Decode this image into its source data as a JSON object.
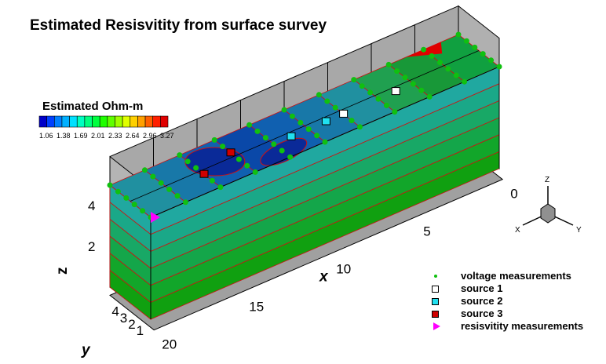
{
  "chart_data": {
    "type": "heatmap",
    "title": "Estimated Resisvitity from surface survey",
    "colorbar": {
      "title": "Estimated Ohm-m",
      "tick_labels": [
        "1.06",
        "1.38",
        "1.69",
        "2.01",
        "2.33",
        "2.64",
        "2.96",
        "3.27"
      ],
      "range": [
        1.06,
        3.27
      ],
      "colors": [
        "#0000c8",
        "#0040ff",
        "#0080ff",
        "#00b0ff",
        "#00e0ff",
        "#00ffc0",
        "#00ff80",
        "#00ff40",
        "#20ff00",
        "#60ff00",
        "#a0ff00",
        "#e0ff00",
        "#ffd000",
        "#ffa000",
        "#ff6000",
        "#ff2000",
        "#e00000"
      ]
    },
    "axes": {
      "x": {
        "label": "x",
        "ticks": [
          "0",
          "5",
          "10",
          "15",
          "20"
        ],
        "range": [
          0,
          20
        ]
      },
      "y": {
        "label": "y",
        "ticks": [
          "1",
          "2",
          "3",
          "4"
        ],
        "range": [
          0,
          5
        ]
      },
      "z": {
        "label": "z",
        "ticks": [
          "2",
          "4"
        ],
        "range": [
          0,
          5
        ]
      }
    },
    "legend": {
      "placement": "bottom-right",
      "entries": [
        {
          "label": "voltage measurements",
          "symbol": "dot",
          "color": "#10c010"
        },
        {
          "label": "source 1",
          "symbol": "square",
          "color": "#ffffff"
        },
        {
          "label": "source 2",
          "symbol": "square",
          "color": "#20e0f0"
        },
        {
          "label": "source 3",
          "symbol": "square",
          "color": "#d00000"
        },
        {
          "label": "resisvitity measurements",
          "symbol": "triangle",
          "color": "#ff00ff"
        }
      ]
    },
    "orientation_axes": [
      "X",
      "Y",
      "Z"
    ],
    "sources": [
      {
        "name": "source 1",
        "x": 5,
        "y": 3
      },
      {
        "name": "source 1",
        "x": 8,
        "y": 3
      },
      {
        "name": "source 2",
        "x": 9,
        "y": 3
      },
      {
        "name": "source 2",
        "x": 11,
        "y": 3
      },
      {
        "name": "source 3",
        "x": 14,
        "y": 2
      },
      {
        "name": "source 3",
        "x": 16,
        "y": 3
      }
    ],
    "resistivity_measurement": {
      "x": 20,
      "y": 5,
      "z": 5
    },
    "voltage_grid": {
      "x": [
        0,
        2,
        4,
        6,
        8,
        10,
        12,
        14,
        16,
        18,
        20
      ],
      "y": [
        0,
        1,
        2,
        3,
        4,
        5
      ]
    }
  }
}
